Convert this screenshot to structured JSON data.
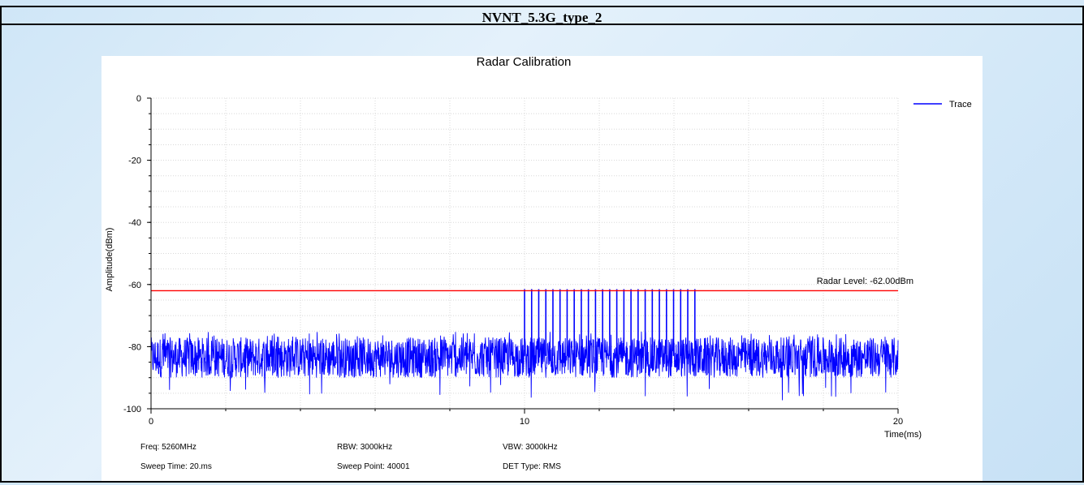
{
  "page_title": "NVNT_5.3G_type_2",
  "chart_data": {
    "type": "line",
    "title": "Radar Calibration",
    "xlabel": "Time(ms)",
    "ylabel": "Amplitude(dBm)",
    "xlim": [
      0,
      20
    ],
    "ylim": [
      -100,
      0
    ],
    "x_ticks": [
      "0",
      "10",
      "20"
    ],
    "y_ticks": [
      "0",
      "-20",
      "-40",
      "-60",
      "-80",
      "-100"
    ],
    "grid": true,
    "legend_position": "top-right",
    "series": [
      {
        "name": "Trace",
        "color": "#0000ff",
        "noise_floor_dbm": -83,
        "noise_band_dbm": [
          -90,
          -77
        ],
        "pulse_peak_dbm": -61.5,
        "pulse_times_ms": [
          10.0,
          10.19,
          10.38,
          10.57,
          10.76,
          10.95,
          11.14,
          11.33,
          11.52,
          11.71,
          11.9,
          12.09,
          12.28,
          12.47,
          12.66,
          12.85,
          13.04,
          13.23,
          13.42,
          13.61,
          13.8,
          13.99,
          14.18,
          14.37,
          14.56
        ]
      }
    ],
    "reference_line": {
      "value": -62.0,
      "label": "Radar Level: -62.00dBm",
      "color": "#ff0000"
    },
    "footer": [
      [
        "Freq: 5260MHz",
        "RBW: 3000kHz",
        "VBW: 3000kHz"
      ],
      [
        "Sweep Time: 20.ms",
        "Sweep Point: 40001",
        "DET Type: RMS"
      ]
    ]
  }
}
